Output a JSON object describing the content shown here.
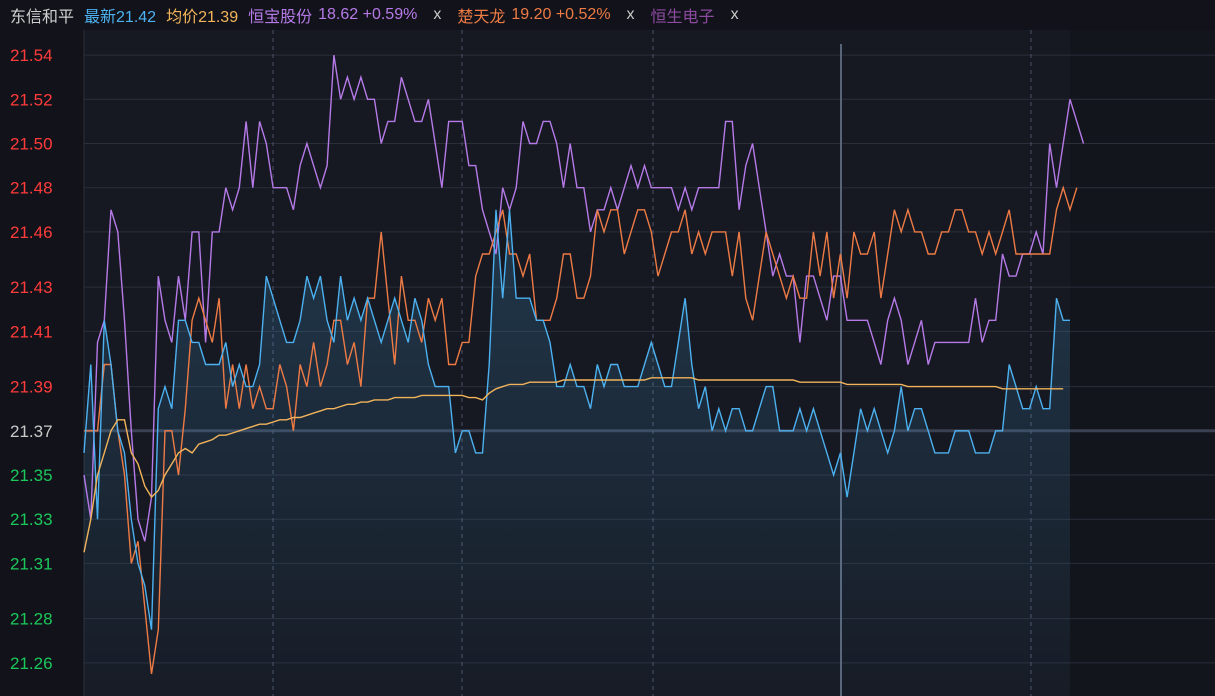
{
  "legend": {
    "main_name": "东信和平",
    "latest": "最新21.42",
    "avg": "均价21.39",
    "comp1_label": "恒宝股份",
    "comp1_stats": "18.62 +0.59%",
    "comp2_label": "楚天龙",
    "comp2_stats": "19.20 +0.52%",
    "comp3_label": "恒生电子",
    "close_label": "x"
  },
  "colors": {
    "background": "#12131a",
    "panel": "#161922",
    "grid": "#2a2f3a",
    "main_line": "#4cb1f0",
    "avg_line": "#f2b45b",
    "comp1_line": "#b67ae8",
    "comp2_line": "#ee7b45",
    "comp3_text": "#8c4aa0",
    "axis_red": "#ff3b3b",
    "axis_green": "#1bc85b",
    "axis_gray": "#c9c9c9"
  },
  "chart_data": {
    "type": "line",
    "ylim": [
      21.25,
      21.55
    ],
    "ybase": 21.37,
    "yticks": [
      "21.54",
      "21.52",
      "21.50",
      "21.48",
      "21.46",
      "21.43",
      "21.41",
      "21.39",
      "21.37",
      "21.35",
      "21.33",
      "21.31",
      "21.28",
      "21.26"
    ],
    "ytick_values": [
      21.54,
      21.52,
      21.5,
      21.48,
      21.46,
      21.435,
      21.415,
      21.39,
      21.37,
      21.35,
      21.33,
      21.31,
      21.285,
      21.265
    ],
    "series": [
      {
        "key": "main",
        "values": [
          21.36,
          21.4,
          21.33,
          21.42,
          21.4,
          21.37,
          21.36,
          21.33,
          21.31,
          21.3,
          21.28,
          21.38,
          21.39,
          21.38,
          21.42,
          21.42,
          21.41,
          21.41,
          21.4,
          21.4,
          21.4,
          21.41,
          21.39,
          21.4,
          21.39,
          21.39,
          21.4,
          21.44,
          21.43,
          21.42,
          21.41,
          21.41,
          21.42,
          21.44,
          21.43,
          21.44,
          21.42,
          21.41,
          21.44,
          21.42,
          21.43,
          21.42,
          21.43,
          21.42,
          21.41,
          21.42,
          21.43,
          21.42,
          21.41,
          21.43,
          21.42,
          21.4,
          21.39,
          21.39,
          21.39,
          21.36,
          21.37,
          21.37,
          21.36,
          21.36,
          21.4,
          21.47,
          21.43,
          21.47,
          21.43,
          21.43,
          21.43,
          21.42,
          21.42,
          21.41,
          21.39,
          21.39,
          21.4,
          21.39,
          21.39,
          21.38,
          21.4,
          21.39,
          21.4,
          21.4,
          21.39,
          21.39,
          21.39,
          21.4,
          21.41,
          21.4,
          21.39,
          21.39,
          21.41,
          21.43,
          21.4,
          21.38,
          21.39,
          21.37,
          21.38,
          21.37,
          21.38,
          21.38,
          21.37,
          21.37,
          21.38,
          21.39,
          21.39,
          21.37,
          21.37,
          21.37,
          21.38,
          21.37,
          21.38,
          21.37,
          21.36,
          21.35,
          21.36,
          21.34,
          21.36,
          21.38,
          21.37,
          21.38,
          21.37,
          21.36,
          21.37,
          21.39,
          21.37,
          21.38,
          21.38,
          21.37,
          21.36,
          21.36,
          21.36,
          21.37,
          21.37,
          21.37,
          21.36,
          21.36,
          21.36,
          21.37,
          21.37,
          21.4,
          21.39,
          21.38,
          21.38,
          21.39,
          21.38,
          21.38,
          21.43,
          21.42,
          21.42
        ],
        "name": ""
      },
      {
        "key": "avg",
        "values": [
          21.315,
          21.33,
          21.35,
          21.36,
          21.37,
          21.375,
          21.375,
          21.36,
          21.355,
          21.345,
          21.34,
          21.343,
          21.35,
          21.355,
          21.36,
          21.362,
          21.36,
          21.364,
          21.365,
          21.366,
          21.368,
          21.368,
          21.369,
          21.37,
          21.371,
          21.372,
          21.373,
          21.373,
          21.374,
          21.375,
          21.375,
          21.376,
          21.376,
          21.377,
          21.378,
          21.379,
          21.38,
          21.38,
          21.381,
          21.382,
          21.382,
          21.383,
          21.383,
          21.384,
          21.384,
          21.384,
          21.385,
          21.385,
          21.385,
          21.385,
          21.386,
          21.386,
          21.386,
          21.386,
          21.386,
          21.386,
          21.386,
          21.385,
          21.385,
          21.384,
          21.387,
          21.389,
          21.39,
          21.391,
          21.391,
          21.391,
          21.392,
          21.392,
          21.392,
          21.392,
          21.392,
          21.393,
          21.393,
          21.393,
          21.393,
          21.393,
          21.393,
          21.393,
          21.393,
          21.393,
          21.393,
          21.393,
          21.393,
          21.393,
          21.394,
          21.394,
          21.394,
          21.394,
          21.394,
          21.394,
          21.394,
          21.393,
          21.393,
          21.393,
          21.393,
          21.393,
          21.393,
          21.393,
          21.393,
          21.393,
          21.393,
          21.393,
          21.393,
          21.393,
          21.393,
          21.393,
          21.392,
          21.392,
          21.392,
          21.392,
          21.392,
          21.392,
          21.392,
          21.391,
          21.391,
          21.391,
          21.391,
          21.391,
          21.391,
          21.391,
          21.391,
          21.391,
          21.39,
          21.39,
          21.39,
          21.39,
          21.39,
          21.39,
          21.39,
          21.39,
          21.39,
          21.39,
          21.39,
          21.39,
          21.39,
          21.39,
          21.389,
          21.389,
          21.389,
          21.389,
          21.389,
          21.389,
          21.389,
          21.389,
          21.389,
          21.389
        ],
        "name": ""
      },
      {
        "key": "comp1",
        "values": [
          21.35,
          21.33,
          21.41,
          21.42,
          21.47,
          21.46,
          21.42,
          21.37,
          21.33,
          21.32,
          21.34,
          21.44,
          21.42,
          21.41,
          21.44,
          21.42,
          21.46,
          21.46,
          21.41,
          21.46,
          21.46,
          21.48,
          21.47,
          21.48,
          21.51,
          21.48,
          21.51,
          21.5,
          21.48,
          21.48,
          21.48,
          21.47,
          21.49,
          21.5,
          21.49,
          21.48,
          21.49,
          21.54,
          21.52,
          21.53,
          21.52,
          21.53,
          21.52,
          21.52,
          21.5,
          21.51,
          21.51,
          21.53,
          21.52,
          21.51,
          21.51,
          21.52,
          21.5,
          21.48,
          21.51,
          21.51,
          21.51,
          21.49,
          21.49,
          21.47,
          21.46,
          21.45,
          21.48,
          21.47,
          21.48,
          21.51,
          21.5,
          21.5,
          21.51,
          21.51,
          21.5,
          21.48,
          21.5,
          21.48,
          21.48,
          21.46,
          21.47,
          21.47,
          21.48,
          21.47,
          21.48,
          21.49,
          21.48,
          21.49,
          21.48,
          21.48,
          21.48,
          21.48,
          21.47,
          21.48,
          21.47,
          21.48,
          21.48,
          21.48,
          21.48,
          21.51,
          21.51,
          21.47,
          21.49,
          21.5,
          21.48,
          21.46,
          21.44,
          21.45,
          21.44,
          21.44,
          21.41,
          21.44,
          21.44,
          21.43,
          21.42,
          21.44,
          21.44,
          21.42,
          21.42,
          21.42,
          21.42,
          21.41,
          21.4,
          21.42,
          21.43,
          21.42,
          21.4,
          21.41,
          21.42,
          21.4,
          21.41,
          21.41,
          21.41,
          21.41,
          21.41,
          21.41,
          21.43,
          21.41,
          21.42,
          21.42,
          21.45,
          21.44,
          21.44,
          21.45,
          21.45,
          21.46,
          21.45,
          21.5,
          21.48,
          21.5,
          21.52,
          21.51,
          21.5
        ],
        "name": ""
      },
      {
        "key": "comp2",
        "values": [
          21.37,
          21.37,
          21.37,
          21.4,
          21.4,
          21.37,
          21.35,
          21.31,
          21.32,
          21.29,
          21.26,
          21.28,
          21.37,
          21.37,
          21.35,
          21.38,
          21.42,
          21.43,
          21.42,
          21.41,
          21.43,
          21.38,
          21.4,
          21.38,
          21.4,
          21.38,
          21.39,
          21.38,
          21.38,
          21.4,
          21.39,
          21.37,
          21.4,
          21.39,
          21.41,
          21.39,
          21.4,
          21.42,
          21.42,
          21.4,
          21.41,
          21.39,
          21.43,
          21.43,
          21.46,
          21.43,
          21.4,
          21.44,
          21.42,
          21.42,
          21.41,
          21.43,
          21.42,
          21.43,
          21.4,
          21.4,
          21.41,
          21.41,
          21.44,
          21.45,
          21.45,
          21.46,
          21.47,
          21.45,
          21.45,
          21.44,
          21.45,
          21.42,
          21.42,
          21.42,
          21.43,
          21.45,
          21.45,
          21.43,
          21.43,
          21.44,
          21.47,
          21.46,
          21.47,
          21.47,
          21.45,
          21.46,
          21.47,
          21.47,
          21.46,
          21.44,
          21.45,
          21.46,
          21.46,
          21.47,
          21.45,
          21.46,
          21.45,
          21.46,
          21.46,
          21.46,
          21.44,
          21.46,
          21.43,
          21.42,
          21.44,
          21.46,
          21.45,
          21.44,
          21.43,
          21.44,
          21.43,
          21.43,
          21.46,
          21.44,
          21.46,
          21.43,
          21.45,
          21.43,
          21.46,
          21.45,
          21.45,
          21.46,
          21.43,
          21.45,
          21.47,
          21.46,
          21.47,
          21.46,
          21.46,
          21.45,
          21.45,
          21.46,
          21.46,
          21.47,
          21.47,
          21.46,
          21.46,
          21.45,
          21.46,
          21.45,
          21.46,
          21.47,
          21.45,
          21.45,
          21.45,
          21.45,
          21.45,
          21.45,
          21.47,
          21.48,
          21.47,
          21.48
        ],
        "name": ""
      }
    ]
  }
}
